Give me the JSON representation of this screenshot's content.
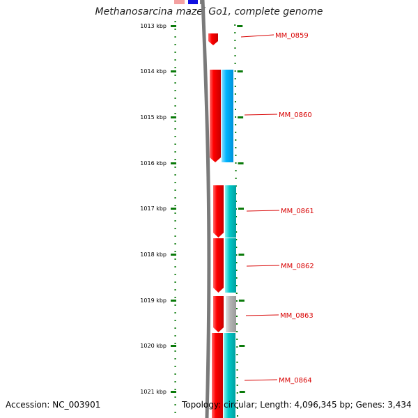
{
  "title": "Methanosarcina mazei Go1, complete genome",
  "footer": {
    "accession": "Accession: NC_003901",
    "summary": "Topology: circular; Length: 4,096,345 bp; Genes: 3,434"
  },
  "colors": {
    "forward_strand": "#ff0000",
    "reverse_strand": "#00b4ff",
    "gene_label": "#d80000",
    "tick": "#0a7a0a",
    "backbone": "#7a7a7a"
  },
  "scale": {
    "ticks": [
      {
        "label": "1013 kbp"
      },
      {
        "label": "1014 kbp"
      },
      {
        "label": "1015 kbp"
      },
      {
        "label": "1016 kbp"
      },
      {
        "label": "1017 kbp"
      },
      {
        "label": "1018 kbp"
      },
      {
        "label": "1019 kbp"
      },
      {
        "label": "1020 kbp"
      },
      {
        "label": "1021 kbp"
      }
    ]
  },
  "genes": [
    {
      "name": "MM_0859",
      "strand": "forward",
      "cog_color": "#ff0000",
      "cog_shade": "#ff0000"
    },
    {
      "name": "MM_0860",
      "strand": "forward",
      "cog_color": "#ff0000",
      "cog_shade": "#00b4ff"
    },
    {
      "name": "MM_0861",
      "strand": "forward",
      "cog_color": "#ff0000",
      "cog_shade": "#00c8c8"
    },
    {
      "name": "MM_0862",
      "strand": "forward",
      "cog_color": "#ff0000",
      "cog_shade": "#00c8c8"
    },
    {
      "name": "MM_0863",
      "strand": "forward",
      "cog_color": "#ff0000",
      "cog_shade": "#b4b4b4"
    },
    {
      "name": "MM_0864",
      "strand": "forward",
      "cog_color": "#ff0000",
      "cog_shade": "#00c8c8"
    }
  ]
}
